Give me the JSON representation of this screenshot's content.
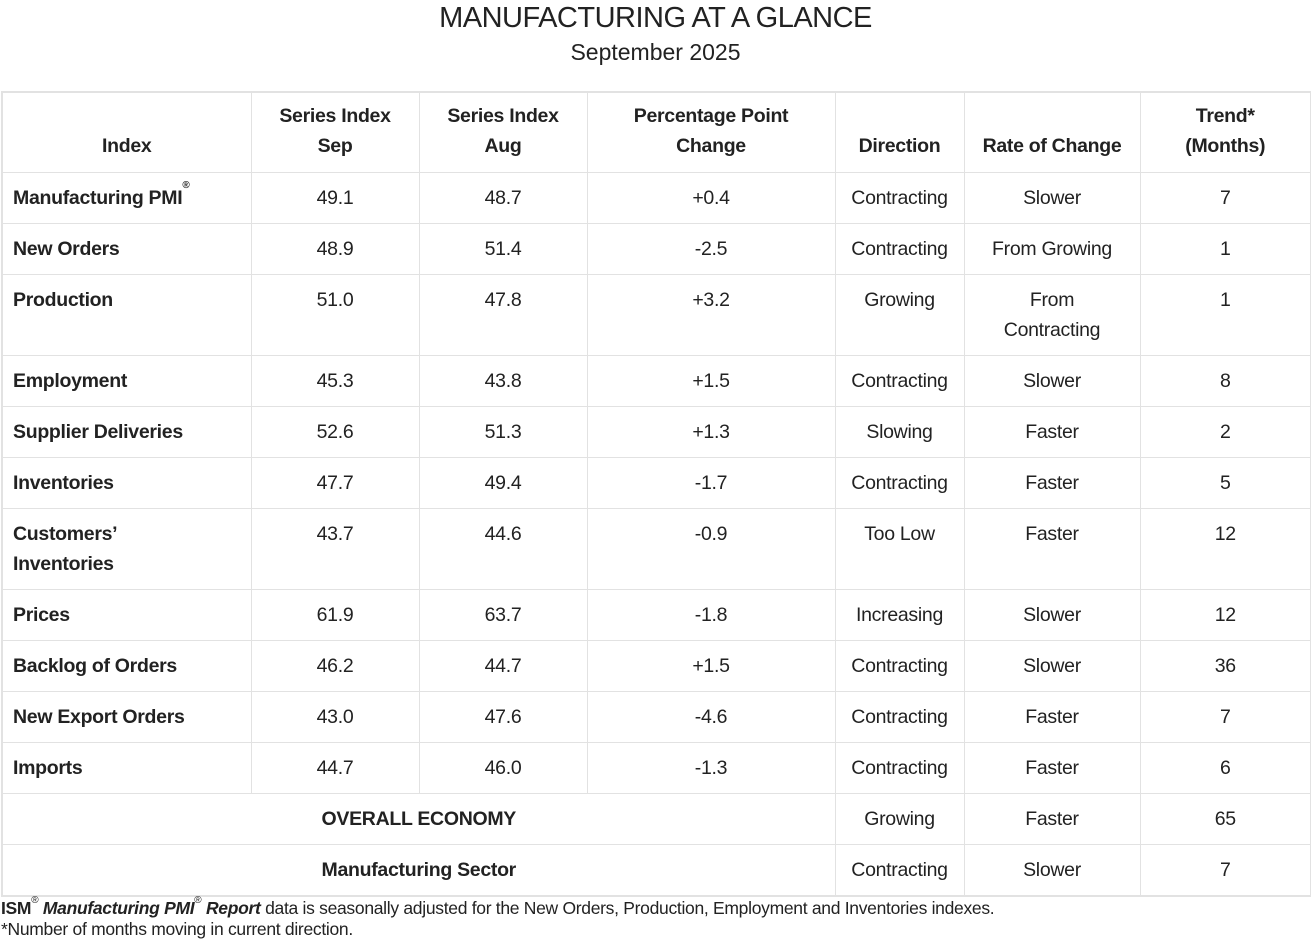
{
  "title": "MANUFACTURING AT A GLANCE",
  "subtitle": "September 2025",
  "headers": [
    "Index",
    "Series Index Sep",
    "Series Index Aug",
    "Percentage Point Change",
    "Direction",
    "Rate of Change",
    "Trend* (Months)"
  ],
  "header_lines": [
    [
      "Index"
    ],
    [
      "Series Index",
      "Sep"
    ],
    [
      "Series Index",
      "Aug"
    ],
    [
      "Percentage Point",
      "Change"
    ],
    [
      "Direction"
    ],
    [
      "Rate of Change"
    ],
    [
      "Trend*",
      "(Months)"
    ]
  ],
  "rows": [
    {
      "index": "Manufacturing PMI",
      "sup": "®",
      "sep": "49.1",
      "aug": "48.7",
      "change": "+0.4",
      "direction": "Contracting",
      "rate": "Slower",
      "trend": "7"
    },
    {
      "index": "New Orders",
      "sep": "48.9",
      "aug": "51.4",
      "change": "-2.5",
      "direction": "Contracting",
      "rate": "From Growing",
      "trend": "1"
    },
    {
      "index": "Production",
      "sep": "51.0",
      "aug": "47.8",
      "change": "+3.2",
      "direction": "Growing",
      "rate": "From Contracting",
      "trend": "1"
    },
    {
      "index": "Employment",
      "sep": "45.3",
      "aug": "43.8",
      "change": "+1.5",
      "direction": "Contracting",
      "rate": "Slower",
      "trend": "8"
    },
    {
      "index": "Supplier Deliveries",
      "sep": "52.6",
      "aug": "51.3",
      "change": "+1.3",
      "direction": "Slowing",
      "rate": "Faster",
      "trend": "2"
    },
    {
      "index": "Inventories",
      "sep": "47.7",
      "aug": "49.4",
      "change": "-1.7",
      "direction": "Contracting",
      "rate": "Faster",
      "trend": "5"
    },
    {
      "index": "Customers’ Inventories",
      "sep": "43.7",
      "aug": "44.6",
      "change": "-0.9",
      "direction": "Too Low",
      "rate": "Faster",
      "trend": "12"
    },
    {
      "index": "Prices",
      "sep": "61.9",
      "aug": "63.7",
      "change": "-1.8",
      "direction": "Increasing",
      "rate": "Slower",
      "trend": "12"
    },
    {
      "index": "Backlog of Orders",
      "sep": "46.2",
      "aug": "44.7",
      "change": "+1.5",
      "direction": "Contracting",
      "rate": "Slower",
      "trend": "36"
    },
    {
      "index": "New Export Orders",
      "sep": "43.0",
      "aug": "47.6",
      "change": "-4.6",
      "direction": "Contracting",
      "rate": "Faster",
      "trend": "7"
    },
    {
      "index": "Imports",
      "sep": "44.7",
      "aug": "46.0",
      "change": "-1.3",
      "direction": "Contracting",
      "rate": "Faster",
      "trend": "6"
    }
  ],
  "summary_rows": [
    {
      "label": "OVERALL ECONOMY",
      "direction": "Growing",
      "rate": "Faster",
      "trend": "65"
    },
    {
      "label": "Manufacturing Sector",
      "direction": "Contracting",
      "rate": "Slower",
      "trend": "7"
    }
  ],
  "footer": {
    "ism": "ISM",
    "reg": "®",
    "report_a": "Manufacturing PMI",
    "report_b": "Report",
    "note1": "data is seasonally adjusted for the New Orders, Production, Employment and Inventories indexes.",
    "note2": "*Number of months moving in current direction."
  }
}
